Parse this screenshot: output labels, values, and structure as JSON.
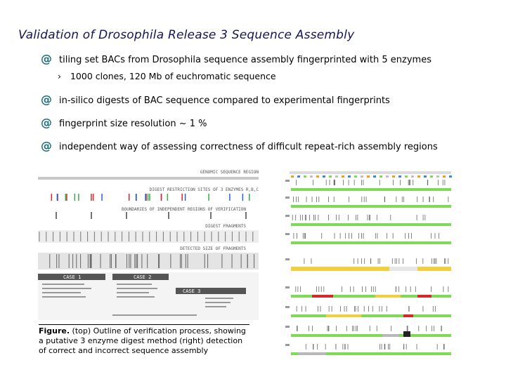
{
  "title": "Validation of Drosophila Release 3 Sequence Assembly",
  "bullets": [
    "tiling set BACs from Drosophila sequence assembly fingerprinted with 5 enzymes",
    "in-silico digests of BAC sequence compared to experimental fingerprints",
    "fingerprint size resolution ~ 1 %",
    "independent way of assessing correctness of difficult repeat-rich assembly regions"
  ],
  "sub_bullet": "1000 clones, 120 Mb of euchromatic sequence",
  "bullet_symbol": "@",
  "arrow_symbol": "›",
  "figure_left": {
    "labels": {
      "genomic": "GENOMIC SEQUENCE REGION",
      "restriction": "DIGEST RESTRICTION SITES OF 3 ENZYMES R,B,C",
      "boundaries": "BOUNDARIES OF INDEPENDENT REGIONS OF VERIFICATION",
      "fragments": "DIGEST FRAGMENTS",
      "detected": "DETECTED SIZE OF FRAGMENTS",
      "case1": "CASE 1",
      "case2": "CASE 2",
      "case3": "CASE 3"
    }
  },
  "caption": {
    "label": "Figure.",
    "text": " (top) Outline of verification process, showing a putative 3 enzyme digest method (right) detection of correct and incorrect sequence assembly"
  },
  "colors": {
    "title": "#14145a",
    "bullet_symbol": "#1f6f7a",
    "green": "#7ed957",
    "yellow": "#f0d040",
    "red": "#d62828",
    "gray": "#b8b8b8"
  }
}
